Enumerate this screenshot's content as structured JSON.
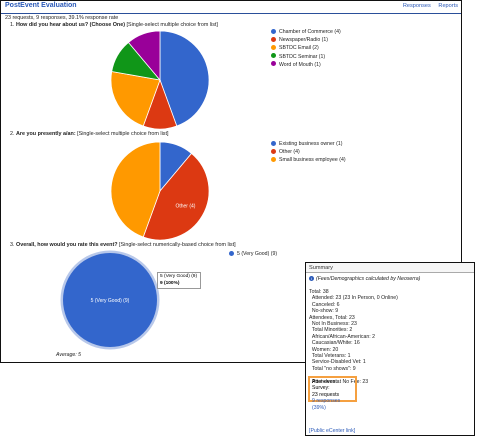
{
  "header": {
    "title": "PostEvent Evaluation",
    "links": [
      "Responses",
      "Reports"
    ],
    "stats": "23 requests, 9 responses, 39.1% response rate"
  },
  "questions": [
    {
      "number": "1.",
      "title": "How did you hear about us? (Choose One)",
      "type": "[Single-select multiple choice from list]",
      "legend": [
        {
          "label": "Chamber of Commerce (4)",
          "color": "#3366cc"
        },
        {
          "label": "Newspaper/Radio (1)",
          "color": "#dc3912"
        },
        {
          "label": "SBTDC Email (2)",
          "color": "#ff9900"
        },
        {
          "label": "SBTDC Seminar (1)",
          "color": "#109618"
        },
        {
          "label": "Word of Mouth (1)",
          "color": "#990099"
        }
      ]
    },
    {
      "number": "2.",
      "title": "Are you presently a/an:",
      "type": "[Single-select multiple choice from list]",
      "legend": [
        {
          "label": "Existing business owner (1)",
          "color": "#3366cc"
        },
        {
          "label": "Other (4)",
          "color": "#dc3912"
        },
        {
          "label": "Small business employee (4)",
          "color": "#ff9900"
        }
      ],
      "slice_label": "Other (4)"
    },
    {
      "number": "3.",
      "title": "Overall, how would you rate this event?",
      "type": "[Single-select numerically-based choice from list]",
      "legend": [
        {
          "label": "5 (Very Good) (9)",
          "color": "#3366cc"
        }
      ],
      "slice_label": "5 (Very Good) (9)",
      "tooltip": {
        "line1": "5 (Very Good) (9)",
        "line2": "9 (100%)"
      },
      "average": "Average: 5"
    }
  ],
  "chart_data": [
    {
      "type": "pie",
      "categories": [
        "Chamber of Commerce",
        "Newspaper/Radio",
        "SBTDC Email",
        "SBTDC Seminar",
        "Word of Mouth"
      ],
      "values": [
        4,
        1,
        2,
        1,
        1
      ],
      "colors": [
        "#3366cc",
        "#dc3912",
        "#ff9900",
        "#109618",
        "#990099"
      ]
    },
    {
      "type": "pie",
      "categories": [
        "Existing business owner",
        "Other",
        "Small business employee"
      ],
      "values": [
        1,
        4,
        4
      ],
      "colors": [
        "#3366cc",
        "#dc3912",
        "#ff9900"
      ]
    },
    {
      "type": "pie",
      "categories": [
        "5 (Very Good)"
      ],
      "values": [
        9
      ],
      "colors": [
        "#3366cc"
      ]
    }
  ],
  "summary": {
    "title": "Summary",
    "note": "(Fees/Demographics calculated by Neoserra)",
    "lines": [
      "Total: 38",
      "  Attended: 23 (23 In Person, 0 Online)",
      "  Canceled: 6",
      "  No-show: 9",
      "Attendees, Total: 23",
      "  Not In Business: 23",
      "  Total Minorities: 2",
      "  African/African-American: 2",
      "  Caucasian/White: 16",
      "  Women: 20",
      "  Total Veterans: 1",
      "  Service-Disabled Vet: 1",
      "  Total \"no shows\": 9",
      "",
      "  Attendees at No Fee: 23"
    ],
    "survey_title": "Post-event Survey:",
    "survey_requests": "23 requests",
    "survey_responses": "9 responses (39%)",
    "footer_link": "[Public eCenter link]"
  }
}
